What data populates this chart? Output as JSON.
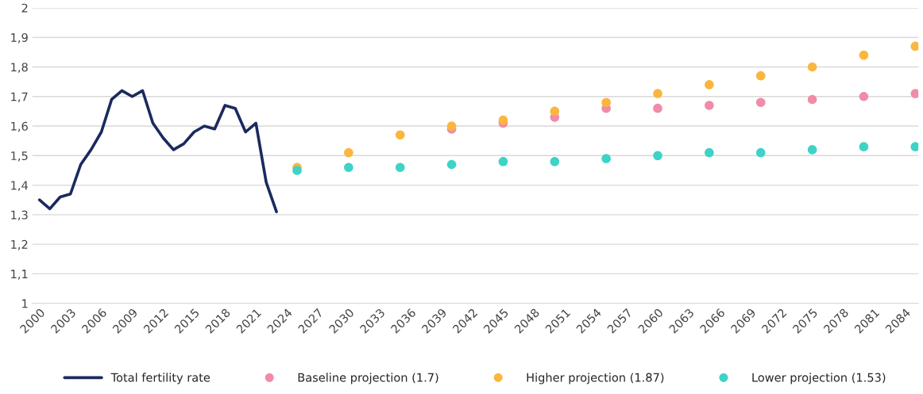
{
  "chart_data": {
    "type": "line",
    "grid": "y",
    "legend": "bottom",
    "xlim": [
      1999.3,
      2085.3
    ],
    "ylim": [
      1,
      2
    ],
    "xticks": [
      2000,
      2003,
      2006,
      2009,
      2012,
      2015,
      2018,
      2021,
      2024,
      2027,
      2030,
      2033,
      2036,
      2039,
      2042,
      2045,
      2048,
      2051,
      2054,
      2057,
      2060,
      2063,
      2066,
      2069,
      2072,
      2075,
      2078,
      2081,
      2084
    ],
    "yticks": [
      1,
      {
        "value": 1.1,
        "label": "1,1"
      },
      {
        "value": 1.2,
        "label": "1,2"
      },
      {
        "value": 1.3,
        "label": "1,3"
      },
      {
        "value": 1.4,
        "label": "1,4"
      },
      {
        "value": 1.5,
        "label": "1,5"
      },
      {
        "value": 1.6,
        "label": "1,6"
      },
      {
        "value": 1.7,
        "label": "1,7"
      },
      {
        "value": 1.8,
        "label": "1,8"
      },
      {
        "value": 1.9,
        "label": "1,9"
      },
      2
    ],
    "series": [
      {
        "name": "Total fertility rate",
        "color": "#1b2a5e",
        "marker": "none",
        "line_style": "solid",
        "x": [
          2000,
          2001,
          2002,
          2003,
          2004,
          2005,
          2006,
          2007,
          2008,
          2009,
          2010,
          2011,
          2012,
          2013,
          2014,
          2015,
          2016,
          2017,
          2018,
          2019,
          2020,
          2021,
          2022,
          2023
        ],
        "values": [
          1.35,
          1.32,
          1.36,
          1.37,
          1.47,
          1.52,
          1.58,
          1.69,
          1.72,
          1.7,
          1.72,
          1.61,
          1.56,
          1.52,
          1.54,
          1.58,
          1.6,
          1.59,
          1.67,
          1.66,
          1.58,
          1.61,
          1.41,
          1.31
        ]
      },
      {
        "name": "Baseline projection (1.7)",
        "type": "scatter",
        "color": "#f08ca8",
        "marker": "circle",
        "x": [
          2040,
          2045,
          2050,
          2055,
          2060,
          2065,
          2070,
          2075,
          2080,
          2085
        ],
        "values": [
          1.59,
          1.61,
          1.63,
          1.66,
          1.66,
          1.67,
          1.68,
          1.69,
          1.7,
          1.71
        ]
      },
      {
        "name": "Higher projection (1.87)",
        "type": "scatter",
        "color": "#fbb63f",
        "marker": "circle",
        "x": [
          2025,
          2030,
          2035,
          2040,
          2045,
          2050,
          2055,
          2060,
          2065,
          2070,
          2075,
          2080,
          2085
        ],
        "values": [
          1.46,
          1.51,
          1.57,
          1.6,
          1.62,
          1.65,
          1.68,
          1.71,
          1.74,
          1.77,
          1.8,
          1.84,
          1.87
        ]
      },
      {
        "name": "Lower projection (1.53)",
        "type": "scatter",
        "color": "#3dd3c6",
        "marker": "circle",
        "x": [
          2025,
          2030,
          2035,
          2040,
          2045,
          2050,
          2055,
          2060,
          2065,
          2070,
          2075,
          2080,
          2085
        ],
        "values": [
          1.45,
          1.46,
          1.46,
          1.47,
          1.48,
          1.48,
          1.49,
          1.5,
          1.51,
          1.51,
          1.52,
          1.53,
          1.53
        ]
      }
    ]
  }
}
